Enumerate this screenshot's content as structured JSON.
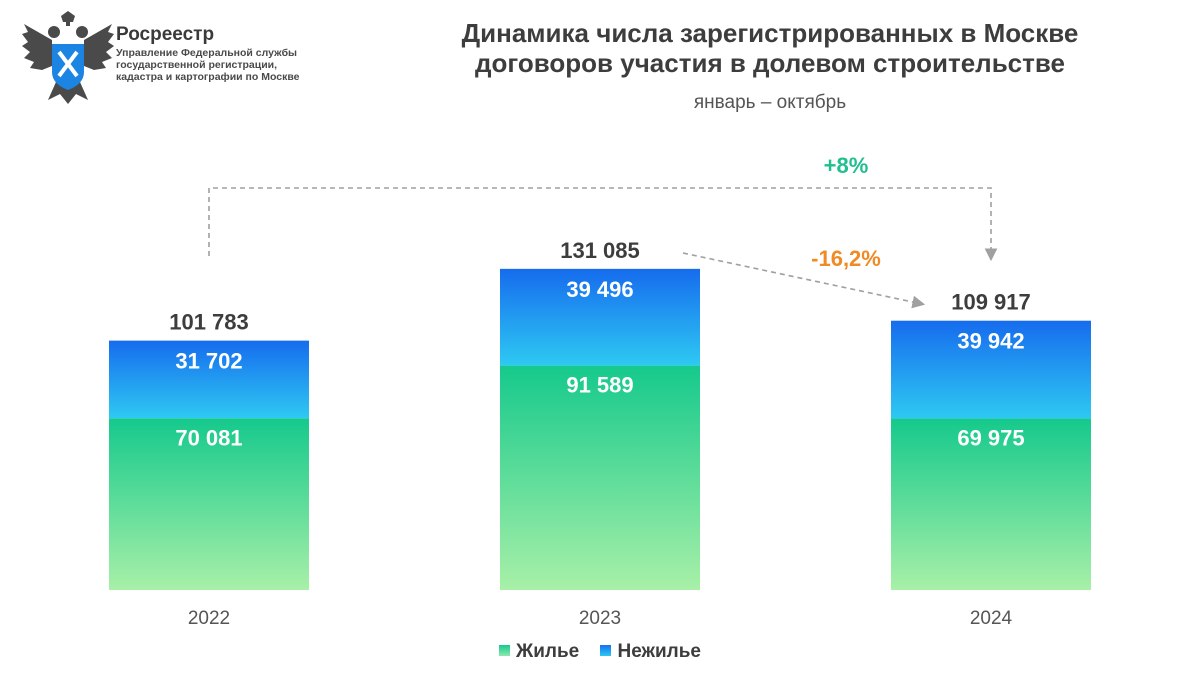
{
  "header": {
    "org_name": "Росреестр",
    "org_desc": "Управление Федеральной службы государственной регистрации, кадастра и картографии по Москве",
    "title_line1": "Динамика числа зарегистрированных в Москве",
    "title_line2": "договоров участия в долевом строительстве",
    "subtitle": "январь – октябрь"
  },
  "colors": {
    "residential_top": "#15c98c",
    "residential_bottom": "#a8f0a8",
    "nonresidential_top": "#166cee",
    "nonresidential_bottom": "#2ec9f2",
    "increase": "#1fbf8f",
    "decrease": "#f08a24"
  },
  "chart_data": {
    "type": "bar",
    "stacked": true,
    "categories": [
      "2022",
      "2023",
      "2024"
    ],
    "series": [
      {
        "name": "Жилье",
        "values": [
          70081,
          91589,
          69975
        ]
      },
      {
        "name": "Нежилье",
        "values": [
          31702,
          39496,
          39942
        ]
      }
    ],
    "series_labels": [
      [
        "70 081",
        "91 589",
        "69 975"
      ],
      [
        "31 702",
        "39 496",
        "39 942"
      ]
    ],
    "totals": [
      101783,
      131085,
      109917
    ],
    "total_labels": [
      "101 783",
      "131 085",
      "109 917"
    ],
    "annotations": [
      {
        "from": "2022",
        "to": "2024",
        "label": "+8%",
        "color": "#1fbf8f"
      },
      {
        "from": "2023",
        "to": "2024",
        "label": "-16,2%",
        "color": "#f08a24"
      }
    ],
    "legend_position": "bottom",
    "grid": false
  }
}
